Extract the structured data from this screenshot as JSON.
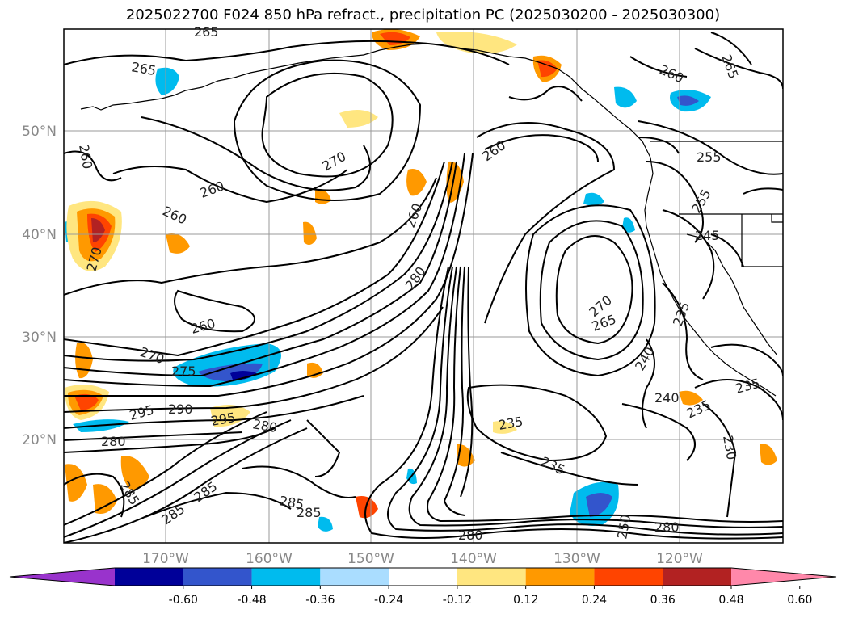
{
  "title": "2025022700 F024 850 hPa refract., precipitation PC (2025030200 - 2025030300)",
  "lat_labels": [
    "50°N",
    "40°N",
    "30°N",
    "20°N"
  ],
  "lon_labels": [
    "170°W",
    "160°W",
    "150°W",
    "140°W",
    "130°W",
    "120°W"
  ],
  "colorbar": {
    "tick_labels": [
      "-0.60",
      "-0.48",
      "-0.36",
      "-0.24",
      "-0.12",
      "0.12",
      "0.24",
      "0.36",
      "0.48",
      "0.60"
    ],
    "colors": [
      "#9933cc",
      "#000099",
      "#3355cc",
      "#00bbee",
      "#aaddff",
      "#ffffff",
      "#ffe680",
      "#ff9900",
      "#ff4400",
      "#b22222",
      "#ff88aa"
    ]
  },
  "contour_labels": [
    {
      "text": "265"
    },
    {
      "text": "265"
    },
    {
      "text": "260"
    },
    {
      "text": "265"
    },
    {
      "text": "260"
    },
    {
      "text": "270"
    },
    {
      "text": "260"
    },
    {
      "text": "260"
    },
    {
      "text": "255"
    },
    {
      "text": "255"
    },
    {
      "text": "245"
    },
    {
      "text": "260"
    },
    {
      "text": "270"
    },
    {
      "text": "280"
    },
    {
      "text": "260"
    },
    {
      "text": "265"
    },
    {
      "text": "270"
    },
    {
      "text": "260"
    },
    {
      "text": "235"
    },
    {
      "text": "240"
    },
    {
      "text": "270"
    },
    {
      "text": "275"
    },
    {
      "text": "290"
    },
    {
      "text": "295"
    },
    {
      "text": "280"
    },
    {
      "text": "295"
    },
    {
      "text": "280"
    },
    {
      "text": "235"
    },
    {
      "text": "240"
    },
    {
      "text": "235"
    },
    {
      "text": "235"
    },
    {
      "text": "285"
    },
    {
      "text": "285"
    },
    {
      "text": "285"
    },
    {
      "text": "235"
    },
    {
      "text": "230"
    },
    {
      "text": "250"
    },
    {
      "text": "280"
    },
    {
      "text": "280"
    },
    {
      "text": "285"
    },
    {
      "text": "285"
    }
  ],
  "colors": {
    "contour": "#000000",
    "grid": "#999999",
    "coast": "#000000"
  }
}
